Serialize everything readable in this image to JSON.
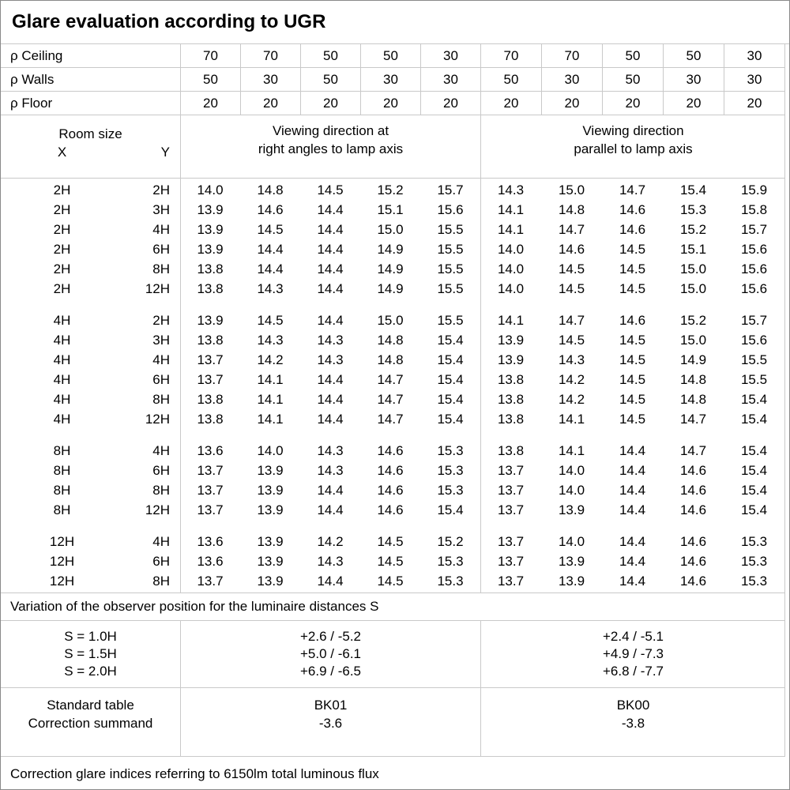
{
  "title": "Glare evaluation according to UGR",
  "reflectances": {
    "rows": [
      {
        "label": "ρ Ceiling",
        "values": [
          "70",
          "70",
          "50",
          "50",
          "30",
          "70",
          "70",
          "50",
          "50",
          "30"
        ]
      },
      {
        "label": "ρ Walls",
        "values": [
          "50",
          "30",
          "50",
          "30",
          "30",
          "50",
          "30",
          "50",
          "30",
          "30"
        ]
      },
      {
        "label": "ρ Floor",
        "values": [
          "20",
          "20",
          "20",
          "20",
          "20",
          "20",
          "20",
          "20",
          "20",
          "20"
        ]
      }
    ]
  },
  "table_header": {
    "room_size": "Room size",
    "x_label": "X",
    "y_label": "Y",
    "group1_line1": "Viewing direction at",
    "group1_line2": "right angles to lamp axis",
    "group2_line1": "Viewing direction",
    "group2_line2": "parallel to lamp axis"
  },
  "ugr_table": {
    "blocks": [
      {
        "rows": [
          {
            "x": "2H",
            "y": "2H",
            "values": [
              "14.0",
              "14.8",
              "14.5",
              "15.2",
              "15.7",
              "14.3",
              "15.0",
              "14.7",
              "15.4",
              "15.9"
            ]
          },
          {
            "x": "2H",
            "y": "3H",
            "values": [
              "13.9",
              "14.6",
              "14.4",
              "15.1",
              "15.6",
              "14.1",
              "14.8",
              "14.6",
              "15.3",
              "15.8"
            ]
          },
          {
            "x": "2H",
            "y": "4H",
            "values": [
              "13.9",
              "14.5",
              "14.4",
              "15.0",
              "15.5",
              "14.1",
              "14.7",
              "14.6",
              "15.2",
              "15.7"
            ]
          },
          {
            "x": "2H",
            "y": "6H",
            "values": [
              "13.9",
              "14.4",
              "14.4",
              "14.9",
              "15.5",
              "14.0",
              "14.6",
              "14.5",
              "15.1",
              "15.6"
            ]
          },
          {
            "x": "2H",
            "y": "8H",
            "values": [
              "13.8",
              "14.4",
              "14.4",
              "14.9",
              "15.5",
              "14.0",
              "14.5",
              "14.5",
              "15.0",
              "15.6"
            ]
          },
          {
            "x": "2H",
            "y": "12H",
            "values": [
              "13.8",
              "14.3",
              "14.4",
              "14.9",
              "15.5",
              "14.0",
              "14.5",
              "14.5",
              "15.0",
              "15.6"
            ]
          }
        ]
      },
      {
        "rows": [
          {
            "x": "4H",
            "y": "2H",
            "values": [
              "13.9",
              "14.5",
              "14.4",
              "15.0",
              "15.5",
              "14.1",
              "14.7",
              "14.6",
              "15.2",
              "15.7"
            ]
          },
          {
            "x": "4H",
            "y": "3H",
            "values": [
              "13.8",
              "14.3",
              "14.3",
              "14.8",
              "15.4",
              "13.9",
              "14.5",
              "14.5",
              "15.0",
              "15.6"
            ]
          },
          {
            "x": "4H",
            "y": "4H",
            "values": [
              "13.7",
              "14.2",
              "14.3",
              "14.8",
              "15.4",
              "13.9",
              "14.3",
              "14.5",
              "14.9",
              "15.5"
            ]
          },
          {
            "x": "4H",
            "y": "6H",
            "values": [
              "13.7",
              "14.1",
              "14.4",
              "14.7",
              "15.4",
              "13.8",
              "14.2",
              "14.5",
              "14.8",
              "15.5"
            ]
          },
          {
            "x": "4H",
            "y": "8H",
            "values": [
              "13.8",
              "14.1",
              "14.4",
              "14.7",
              "15.4",
              "13.8",
              "14.2",
              "14.5",
              "14.8",
              "15.4"
            ]
          },
          {
            "x": "4H",
            "y": "12H",
            "values": [
              "13.8",
              "14.1",
              "14.4",
              "14.7",
              "15.4",
              "13.8",
              "14.1",
              "14.5",
              "14.7",
              "15.4"
            ]
          }
        ]
      },
      {
        "rows": [
          {
            "x": "8H",
            "y": "4H",
            "values": [
              "13.6",
              "14.0",
              "14.3",
              "14.6",
              "15.3",
              "13.8",
              "14.1",
              "14.4",
              "14.7",
              "15.4"
            ]
          },
          {
            "x": "8H",
            "y": "6H",
            "values": [
              "13.7",
              "13.9",
              "14.3",
              "14.6",
              "15.3",
              "13.7",
              "14.0",
              "14.4",
              "14.6",
              "15.4"
            ]
          },
          {
            "x": "8H",
            "y": "8H",
            "values": [
              "13.7",
              "13.9",
              "14.4",
              "14.6",
              "15.3",
              "13.7",
              "14.0",
              "14.4",
              "14.6",
              "15.4"
            ]
          },
          {
            "x": "8H",
            "y": "12H",
            "values": [
              "13.7",
              "13.9",
              "14.4",
              "14.6",
              "15.4",
              "13.7",
              "13.9",
              "14.4",
              "14.6",
              "15.4"
            ]
          }
        ]
      },
      {
        "rows": [
          {
            "x": "12H",
            "y": "4H",
            "values": [
              "13.6",
              "13.9",
              "14.2",
              "14.5",
              "15.2",
              "13.7",
              "14.0",
              "14.4",
              "14.6",
              "15.3"
            ]
          },
          {
            "x": "12H",
            "y": "6H",
            "values": [
              "13.6",
              "13.9",
              "14.3",
              "14.5",
              "15.3",
              "13.7",
              "13.9",
              "14.4",
              "14.6",
              "15.3"
            ]
          },
          {
            "x": "12H",
            "y": "8H",
            "values": [
              "13.7",
              "13.9",
              "14.4",
              "14.5",
              "15.3",
              "13.7",
              "13.9",
              "14.4",
              "14.6",
              "15.3"
            ]
          }
        ]
      }
    ]
  },
  "variation_note": "Variation of the observer position for the luminaire distances S",
  "observer_variation": {
    "rows": [
      {
        "label": "S = 1.0H",
        "right_angles": "+2.6 / -5.2",
        "parallel": "+2.4 / -5.1"
      },
      {
        "label": "S = 1.5H",
        "right_angles": "+5.0 / -6.1",
        "parallel": "+4.9 / -7.3"
      },
      {
        "label": "S = 2.0H",
        "right_angles": "+6.9 / -6.5",
        "parallel": "+6.8 / -7.7"
      }
    ]
  },
  "standard_table": {
    "row1_label": "Standard table",
    "row2_label": "Correction summand",
    "right_angles": {
      "table": "BK01",
      "summand": "-3.6"
    },
    "parallel": {
      "table": "BK00",
      "summand": "-3.8"
    }
  },
  "footer_note": "Correction glare indices referring to 6150lm total luminous flux"
}
